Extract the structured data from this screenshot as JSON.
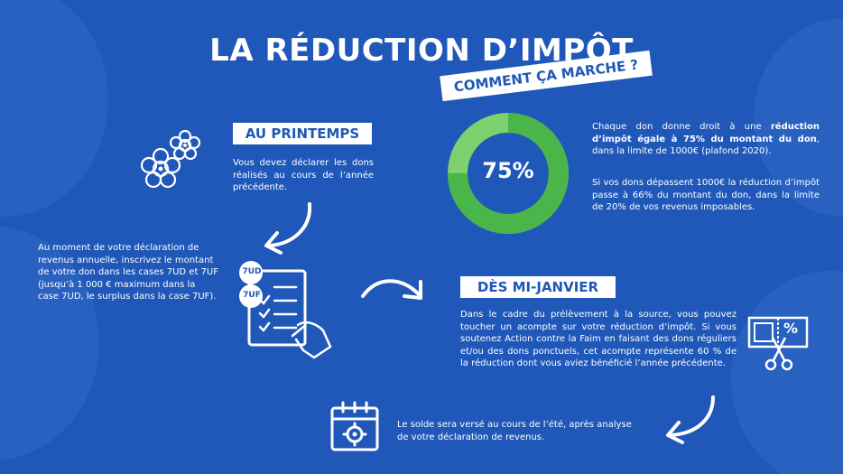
{
  "title": "LA RÉDUCTION D’IMPÔT",
  "subtitle": "COMMENT ÇA MARCHE ?",
  "printemps": {
    "label": "AU PRINTEMPS",
    "text": "Vous devez déclarer les dons réalisés au cours de l’année précédente."
  },
  "declaration": {
    "text": "Au moment de votre déclaration de revenus annuelle, inscrivez le montant de votre don dans les cases 7UD et 7UF (jusqu’à 1 000 € maximum dans la case 7UD, le surplus dans la case 7UF).",
    "badge1": "7UD",
    "badge2": "7UF"
  },
  "donut": {
    "value": 75,
    "label": "75%",
    "colors": {
      "filled": "#4ab64a",
      "remaining": "#7fd06f"
    }
  },
  "reduction": {
    "part1_pre": "Chaque don donne droit à une ",
    "part1_bold": "réduction d’impôt égale à 75% du montant du don",
    "part1_post": ", dans la limite de 1000€ (plafond 2020).",
    "part2": "Si vos dons dépassent 1000€ la réduction d’impôt passe à 66% du montant du don, dans la limite de 20% de vos revenus imposables."
  },
  "janvier": {
    "label": "DÈS MI-JANVIER",
    "text": "Dans le cadre du prélèvement à la source, vous pouvez toucher un acompte sur votre réduction d’impôt. Si vous soutenez Action contre la Faim en faisant des dons réguliers et/ou des dons ponctuels, cet acompte représente 60 % de la réduction dont vous aviez bénéficié l’année précédente."
  },
  "ete": {
    "text": "Le solde sera versé au cours de l’été, après analyse de votre déclaration de revenus."
  },
  "coupon": {
    "percent_symbol": "%"
  },
  "icons": [
    "flowers-icon",
    "arrow-down-left-icon",
    "form-hand-icon",
    "arrow-right-icon",
    "coupon-scissors-icon",
    "arrow-down-left-icon",
    "calendar-gear-icon"
  ],
  "colors": {
    "background": "#1f58b8",
    "accent": "#ffffff",
    "donut_green": "#4ab64a"
  }
}
